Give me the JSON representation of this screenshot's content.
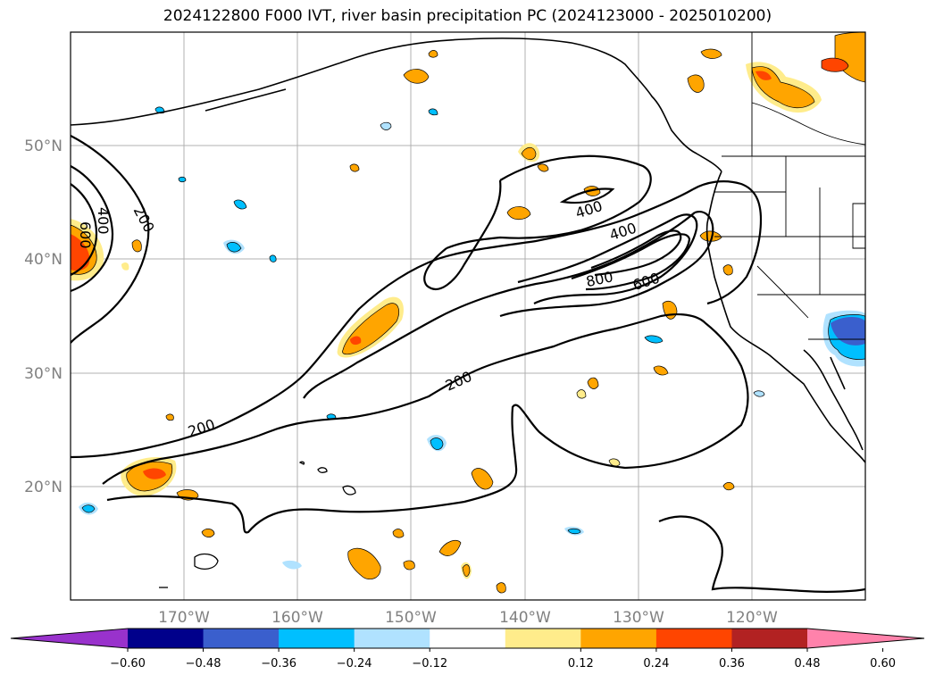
{
  "title": "2024122800 F000 IVT, river basin precipitation PC (2024123000 - 2025010200)",
  "lat_labels": [
    "50°N",
    "40°N",
    "30°N",
    "20°N"
  ],
  "lon_labels": [
    "170°W",
    "160°W",
    "150°W",
    "140°W",
    "130°W",
    "120°W"
  ],
  "contour_labels": [
    "600",
    "400",
    "200",
    "400",
    "400",
    "800",
    "600",
    "200",
    "200"
  ],
  "colorbar": {
    "colors": [
      "#9932cc",
      "#00008b",
      "#3a5fcd",
      "#00bfff",
      "#b0e2ff",
      "#ffffff",
      "#ffec8b",
      "#ffa500",
      "#ff4500",
      "#b22222",
      "#ff82ab"
    ],
    "tick_labels": [
      "−0.60",
      "−0.48",
      "−0.36",
      "−0.24",
      "−0.12",
      "0.12",
      "0.24",
      "0.36",
      "0.48",
      "0.60"
    ]
  }
}
